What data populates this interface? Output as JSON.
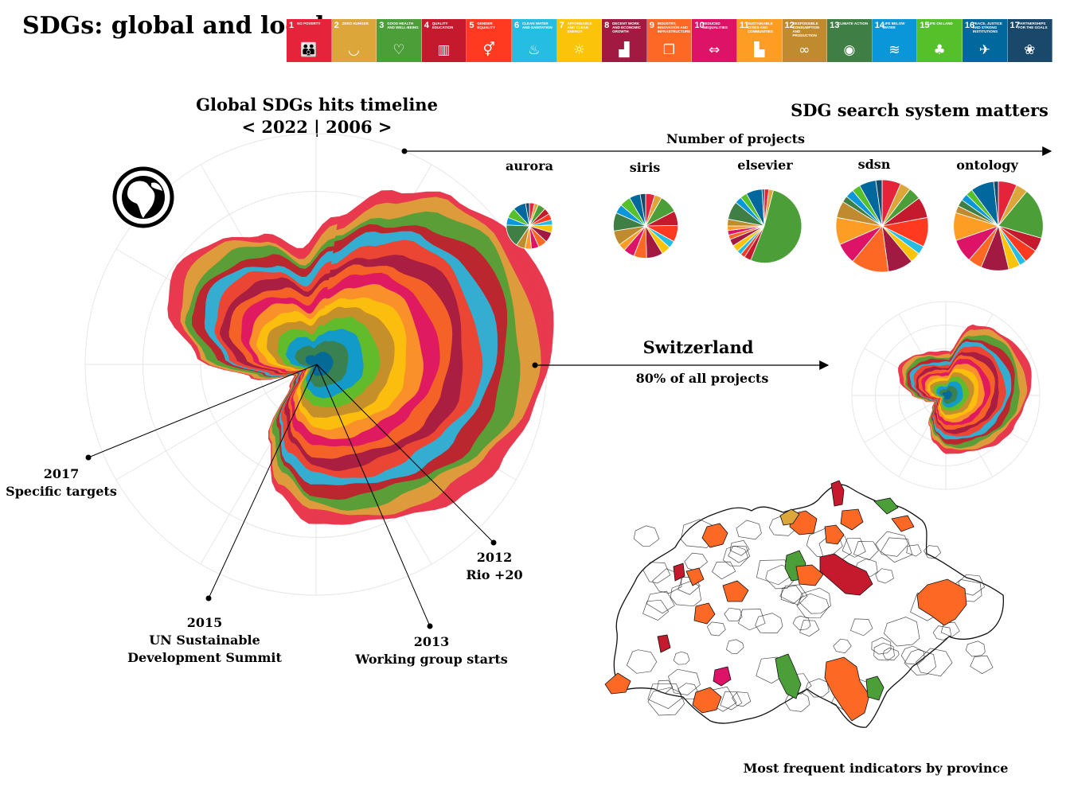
{
  "title": "SDGs: global and local",
  "sdg_goals": [
    {
      "num": "1",
      "label": "No poverty",
      "color": "#E5243B",
      "icon": "people-icon",
      "glyph": "👪"
    },
    {
      "num": "2",
      "label": "Zero hunger",
      "color": "#DDA63A",
      "icon": "bowl-icon",
      "glyph": "◡"
    },
    {
      "num": "3",
      "label": "Good health and well-being",
      "color": "#4C9F38",
      "icon": "heartbeat-icon",
      "glyph": "♡"
    },
    {
      "num": "4",
      "label": "Quality education",
      "color": "#C5192D",
      "icon": "book-icon",
      "glyph": "▥"
    },
    {
      "num": "5",
      "label": "Gender equality",
      "color": "#FF3A21",
      "icon": "gender-icon",
      "glyph": "⚥"
    },
    {
      "num": "6",
      "label": "Clean water and sanitation",
      "color": "#26BDE2",
      "icon": "water-drop-icon",
      "glyph": "♨"
    },
    {
      "num": "7",
      "label": "Affordable and clean energy",
      "color": "#FCC30B",
      "icon": "sun-icon",
      "glyph": "☼"
    },
    {
      "num": "8",
      "label": "Decent work and economic growth",
      "color": "#A21942",
      "icon": "growth-chart-icon",
      "glyph": "▟"
    },
    {
      "num": "9",
      "label": "Industry, innovation and infrastructure",
      "color": "#FD6925",
      "icon": "cubes-icon",
      "glyph": "❒"
    },
    {
      "num": "10",
      "label": "Reduced inequalities",
      "color": "#DD1367",
      "icon": "equality-icon",
      "glyph": "⇔"
    },
    {
      "num": "11",
      "label": "Sustainable cities and communities",
      "color": "#FD9D24",
      "icon": "city-icon",
      "glyph": "▙"
    },
    {
      "num": "12",
      "label": "Responsible consumption and production",
      "color": "#BF8B2E",
      "icon": "infinity-icon",
      "glyph": "∞"
    },
    {
      "num": "13",
      "label": "Climate action",
      "color": "#3F7E44",
      "icon": "eye-icon",
      "glyph": "◉"
    },
    {
      "num": "14",
      "label": "Life below water",
      "color": "#0A97D9",
      "icon": "fish-icon",
      "glyph": "≋"
    },
    {
      "num": "15",
      "label": "Life on land",
      "color": "#56C02B",
      "icon": "tree-icon",
      "glyph": "♣"
    },
    {
      "num": "16",
      "label": "Peace, justice and strong institutions",
      "color": "#00689D",
      "icon": "dove-icon",
      "glyph": "✈"
    },
    {
      "num": "17",
      "label": "Partnerships for the goals",
      "color": "#19486A",
      "icon": "flower-icon",
      "glyph": "❀"
    }
  ],
  "global_section": {
    "title_line1": "Global SDGs hits timeline",
    "title_line2": "< 2022 | 2006 >",
    "icon": "globe-icon"
  },
  "annotations": [
    {
      "year": "2017",
      "text": "Specific targets"
    },
    {
      "year": "2015",
      "text": "UN Sustainable",
      "text2": "Development Summit"
    },
    {
      "year": "2013",
      "text": "Working group starts"
    },
    {
      "year": "2012",
      "text": "Rio +20"
    }
  ],
  "search_section": {
    "title": "SDG search system matters",
    "axis_label": "Number of projects"
  },
  "switzerland": {
    "title": "Switzerland",
    "subtitle": "80% of all projects"
  },
  "map_caption": "Most frequent indicators by province",
  "chart_data": [
    {
      "type": "area",
      "name": "global-radial-stream",
      "series_order": [
        "SDG16",
        "SDG13",
        "SDG14",
        "SDG15",
        "SDG12",
        "SDG7",
        "SDG11",
        "SDG10",
        "SDG9",
        "SDG8",
        "SDG5",
        "SDG6",
        "SDG4",
        "SDG3",
        "SDG2",
        "SDG1"
      ],
      "radial_profile": [
        0.62,
        0.78,
        0.92,
        1.0,
        1.0,
        0.98,
        0.95,
        0.88,
        0.8,
        0.74,
        0.7,
        0.66,
        0.55,
        0.38,
        0.15,
        0.1,
        0.28,
        0.52,
        0.66,
        0.7,
        0.67,
        0.6,
        0.48
      ],
      "grid": true
    },
    {
      "type": "pie",
      "categories": [
        "SDG1",
        "SDG2",
        "SDG3",
        "SDG4",
        "SDG5",
        "SDG6",
        "SDG7",
        "SDG8",
        "SDG9",
        "SDG10",
        "SDG11",
        "SDG12",
        "SDG13",
        "SDG14",
        "SDG15",
        "SDG16",
        "SDG17"
      ],
      "series": [
        {
          "name": "aurora",
          "values": [
            4,
            3,
            6,
            5,
            5,
            4,
            6,
            8,
            7,
            6,
            5,
            7,
            18,
            6,
            8,
            10,
            3
          ]
        },
        {
          "name": "siris",
          "values": [
            5,
            4,
            10,
            8,
            9,
            4,
            5,
            9,
            7,
            6,
            4,
            8,
            10,
            5,
            6,
            6,
            3
          ]
        },
        {
          "name": "elsevier",
          "values": [
            2,
            2,
            52,
            3,
            2,
            2,
            3,
            3,
            2,
            2,
            2,
            3,
            8,
            3,
            3,
            7,
            1
          ]
        },
        {
          "name": "sdsn",
          "values": [
            9,
            5,
            6,
            10,
            14,
            4,
            5,
            12,
            18,
            10,
            13,
            8,
            3,
            4,
            4,
            8,
            3
          ]
        },
        {
          "name": "ontology",
          "values": [
            8,
            5,
            22,
            6,
            6,
            3,
            5,
            12,
            6,
            10,
            12,
            3,
            3,
            3,
            3,
            10,
            2
          ]
        }
      ],
      "relative_size": {
        "aurora": 0.5,
        "siris": 0.7,
        "elsevier": 0.8,
        "sdsn": 1.0,
        "ontology": 0.97
      }
    },
    {
      "type": "area",
      "name": "switzerland-radial-stream",
      "radial_profile": [
        0.5,
        0.85,
        0.95,
        1.0,
        1.0,
        0.97,
        0.92,
        0.86,
        0.8,
        0.74,
        0.7,
        0.66,
        0.55,
        0.4,
        0.22,
        0.15,
        0.25,
        0.4,
        0.55,
        0.62,
        0.6,
        0.55,
        0.5
      ],
      "grid": true
    }
  ]
}
